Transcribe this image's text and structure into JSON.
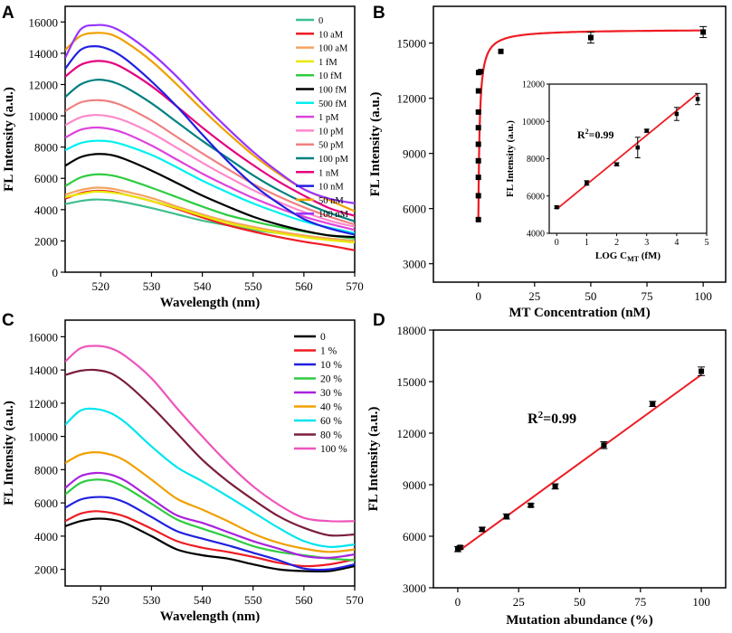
{
  "chart_data": [
    {
      "panel": "A",
      "type": "line",
      "xlabel": "Wavelength (nm)",
      "ylabel": "FL Intensity (a.u.)",
      "xlim": [
        513,
        570
      ],
      "ylim": [
        0,
        17000
      ],
      "xticks": [
        520,
        530,
        540,
        550,
        560,
        570
      ],
      "yticks": [
        0,
        2000,
        4000,
        6000,
        8000,
        10000,
        12000,
        14000,
        16000
      ],
      "x": [
        513,
        516,
        519,
        522,
        525,
        530,
        535,
        540,
        545,
        550,
        555,
        560,
        565,
        570
      ],
      "legend_position": "top-right",
      "series": [
        {
          "name": "0",
          "color": "#3fbf8f",
          "values": [
            4350,
            4550,
            4650,
            4600,
            4450,
            4100,
            3700,
            3300,
            3000,
            2700,
            2500,
            2300,
            2150,
            2000
          ]
        },
        {
          "name": "10 aM",
          "color": "#ee1c24",
          "values": [
            4700,
            5050,
            5200,
            5150,
            4950,
            4550,
            4050,
            3500,
            3000,
            2600,
            2250,
            1950,
            1700,
            1400
          ]
        },
        {
          "name": "100 aM",
          "color": "#f4a460",
          "values": [
            4950,
            5250,
            5400,
            5350,
            5150,
            4750,
            4200,
            3700,
            3250,
            2900,
            2600,
            2350,
            2150,
            2000
          ]
        },
        {
          "name": "1 fM",
          "color": "#e8e800",
          "values": [
            4800,
            5000,
            5150,
            5100,
            4950,
            4550,
            4100,
            3600,
            3150,
            2800,
            2500,
            2250,
            2050,
            1900
          ]
        },
        {
          "name": "10 fM",
          "color": "#2ecc40",
          "values": [
            5500,
            6050,
            6250,
            6200,
            5950,
            5400,
            4800,
            4200,
            3650,
            3250,
            2900,
            2600,
            2350,
            2150
          ]
        },
        {
          "name": "100 fM",
          "color": "#000000",
          "values": [
            6800,
            7350,
            7550,
            7500,
            7200,
            6500,
            5700,
            4900,
            4200,
            3550,
            3050,
            2650,
            2350,
            2250
          ]
        },
        {
          "name": "500 fM",
          "color": "#00f0f0",
          "values": [
            7800,
            8250,
            8400,
            8350,
            8100,
            7500,
            6700,
            5850,
            5100,
            4400,
            3800,
            3250,
            2850,
            2500
          ]
        },
        {
          "name": "1 pM",
          "color": "#dd44dd",
          "values": [
            8600,
            9100,
            9250,
            9150,
            8850,
            8100,
            7200,
            6300,
            5500,
            4750,
            4100,
            3550,
            3100,
            2700
          ]
        },
        {
          "name": "10 pM",
          "color": "#ff88cc",
          "values": [
            9400,
            9900,
            10050,
            9950,
            9650,
            8900,
            7950,
            7000,
            6100,
            5250,
            4500,
            3850,
            3300,
            2900
          ]
        },
        {
          "name": "50 pM",
          "color": "#f08080",
          "values": [
            10300,
            10850,
            11000,
            10900,
            10550,
            9700,
            8650,
            7600,
            6600,
            5650,
            4850,
            4150,
            3550,
            3050
          ]
        },
        {
          "name": "100 pM",
          "color": "#008080",
          "values": [
            11200,
            12000,
            12300,
            12200,
            11800,
            10800,
            9600,
            8400,
            7300,
            6200,
            5250,
            4450,
            3800,
            3250
          ]
        },
        {
          "name": "1 nM",
          "color": "#e6007e",
          "values": [
            12500,
            13250,
            13500,
            13400,
            12950,
            11900,
            10600,
            9250,
            8000,
            6850,
            5800,
            4900,
            4100,
            3600
          ]
        },
        {
          "name": "10 nM",
          "color": "#2020e0",
          "values": [
            13000,
            14200,
            14450,
            14200,
            13600,
            12200,
            10600,
            8800,
            7100,
            5600,
            4400,
            3400,
            2800,
            2400
          ]
        },
        {
          "name": "50 nM",
          "color": "#f0a000",
          "values": [
            14200,
            15100,
            15300,
            15200,
            14700,
            13500,
            12000,
            10400,
            8900,
            7500,
            6300,
            5300,
            4600,
            3900
          ]
        },
        {
          "name": "100 nM",
          "color": "#9933ff",
          "values": [
            13700,
            15500,
            15800,
            15700,
            15200,
            14000,
            12500,
            10800,
            9200,
            7700,
            6400,
            5300,
            4700,
            4400
          ]
        }
      ]
    },
    {
      "panel": "B",
      "type": "scatter",
      "xlabel": "MT Concentration (nM)",
      "ylabel": "FL Intensity (a.u.)",
      "xlim": [
        -20,
        110
      ],
      "ylim": [
        2000,
        17000
      ],
      "xticks": [
        0,
        25,
        50,
        75,
        100
      ],
      "yticks": [
        3000,
        6000,
        9000,
        12000,
        15000
      ],
      "points": [
        {
          "x": 0,
          "y": 5400
        },
        {
          "x": 0,
          "y": 6700
        },
        {
          "x": 0,
          "y": 7700
        },
        {
          "x": 0,
          "y": 8600
        },
        {
          "x": 0,
          "y": 9500
        },
        {
          "x": 0,
          "y": 10400
        },
        {
          "x": 0.01,
          "y": 11250
        },
        {
          "x": 0.05,
          "y": 12400
        },
        {
          "x": 0.1,
          "y": 13400
        },
        {
          "x": 1,
          "y": 13450
        },
        {
          "x": 10,
          "y": 14550
        },
        {
          "x": 50,
          "y": 15300
        },
        {
          "x": 100,
          "y": 15600
        }
      ],
      "fit_color": "#ee1c24",
      "inset": {
        "xlabel_main": "LOG C",
        "xlabel_sub": "MT",
        "xlabel_unit": " (fM)",
        "ylabel": "FL Intensity (a.u.)",
        "xlim": [
          -0.25,
          5
        ],
        "ylim": [
          4000,
          12000
        ],
        "xticks": [
          0,
          1,
          2,
          3,
          4,
          5
        ],
        "yticks": [
          4000,
          6000,
          8000,
          10000,
          12000
        ],
        "r2_main": "R",
        "r2_sup": "2",
        "r2_value": "=0.99",
        "points": [
          {
            "x": 0,
            "y": 5400,
            "err": 60
          },
          {
            "x": 1,
            "y": 6700,
            "err": 120
          },
          {
            "x": 2,
            "y": 7700,
            "err": 80
          },
          {
            "x": 2.7,
            "y": 8600,
            "err": 550
          },
          {
            "x": 3,
            "y": 9500,
            "err": 80
          },
          {
            "x": 4,
            "y": 10400,
            "err": 350
          },
          {
            "x": 4.7,
            "y": 11200,
            "err": 300
          }
        ],
        "fit": {
          "x1": 0,
          "y1": 5300,
          "x2": 4.7,
          "y2": 11500
        }
      }
    },
    {
      "panel": "C",
      "type": "line",
      "xlabel": "Wavelength (nm)",
      "ylabel": "FL Intensity (a.u.)",
      "xlim": [
        513,
        570
      ],
      "ylim": [
        1000,
        17000
      ],
      "xticks": [
        520,
        530,
        540,
        550,
        560,
        570
      ],
      "yticks": [
        2000,
        4000,
        6000,
        8000,
        10000,
        12000,
        14000,
        16000
      ],
      "x": [
        513,
        516,
        519,
        522,
        525,
        530,
        535,
        540,
        545,
        550,
        555,
        560,
        565,
        570
      ],
      "legend_position": "top-right",
      "series": [
        {
          "name": "0",
          "color": "#000000",
          "values": [
            4600,
            4900,
            5050,
            5000,
            4750,
            4000,
            3200,
            2850,
            2650,
            2300,
            2000,
            1900,
            1900,
            2200
          ]
        },
        {
          "name": "1 %",
          "color": "#ee1c24",
          "values": [
            4900,
            5350,
            5500,
            5400,
            5150,
            4450,
            3700,
            3300,
            3050,
            2750,
            2400,
            2200,
            2300,
            2600
          ]
        },
        {
          "name": "10 %",
          "color": "#2020e0",
          "values": [
            5700,
            6200,
            6350,
            6300,
            6000,
            5150,
            4300,
            3850,
            3450,
            3000,
            2550,
            2050,
            2000,
            2300
          ]
        },
        {
          "name": "20 %",
          "color": "#2ecc40",
          "values": [
            6500,
            7200,
            7400,
            7300,
            6900,
            5950,
            5000,
            4450,
            3950,
            3400,
            3050,
            2850,
            2650,
            2550
          ]
        },
        {
          "name": "30 %",
          "color": "#aa22dd",
          "values": [
            6900,
            7600,
            7800,
            7700,
            7300,
            6250,
            5250,
            4800,
            4250,
            3700,
            3250,
            2800,
            2700,
            2900
          ]
        },
        {
          "name": "40 %",
          "color": "#f0a000",
          "values": [
            8400,
            8900,
            9050,
            8900,
            8500,
            7400,
            6250,
            5600,
            4900,
            4150,
            3600,
            3250,
            3050,
            3200
          ]
        },
        {
          "name": "60 %",
          "color": "#00e5ee",
          "values": [
            10700,
            11550,
            11650,
            11400,
            10800,
            9400,
            8150,
            7300,
            6400,
            5450,
            4500,
            3700,
            3350,
            3500
          ]
        },
        {
          "name": "80 %",
          "color": "#7b1e3a",
          "values": [
            13700,
            13950,
            14000,
            13800,
            13200,
            11800,
            10200,
            8600,
            7300,
            6200,
            5200,
            4500,
            4050,
            4100
          ]
        },
        {
          "name": "100 %",
          "color": "#ee55bb",
          "values": [
            14500,
            15300,
            15450,
            15300,
            14800,
            13500,
            11700,
            10000,
            8400,
            7000,
            5900,
            5100,
            4900,
            4900
          ]
        }
      ]
    },
    {
      "panel": "D",
      "type": "scatter",
      "xlabel": "Mutation abundance (%)",
      "ylabel": "FL Intensity (a.u.)",
      "xlim": [
        -10,
        110
      ],
      "ylim": [
        3000,
        18000
      ],
      "xticks": [
        0,
        25,
        50,
        75,
        100
      ],
      "yticks": [
        3000,
        6000,
        9000,
        12000,
        15000,
        18000
      ],
      "r2_main": "R",
      "r2_sup": "2",
      "r2_value": "=0.99",
      "points": [
        {
          "x": 0,
          "y": 5250,
          "err": 150
        },
        {
          "x": 1,
          "y": 5350,
          "err": 100
        },
        {
          "x": 10,
          "y": 6400,
          "err": 120
        },
        {
          "x": 20,
          "y": 7150,
          "err": 150
        },
        {
          "x": 30,
          "y": 7800,
          "err": 100
        },
        {
          "x": 40,
          "y": 8900,
          "err": 150
        },
        {
          "x": 60,
          "y": 11300,
          "err": 200
        },
        {
          "x": 80,
          "y": 13700,
          "err": 150
        },
        {
          "x": 100,
          "y": 15600,
          "err": 250
        }
      ],
      "fit": {
        "x1": 0,
        "y1": 5100,
        "x2": 100,
        "y2": 15400
      },
      "fit_color": "#ee1c24"
    }
  ],
  "panel_labels": [
    "A",
    "B",
    "C",
    "D"
  ]
}
